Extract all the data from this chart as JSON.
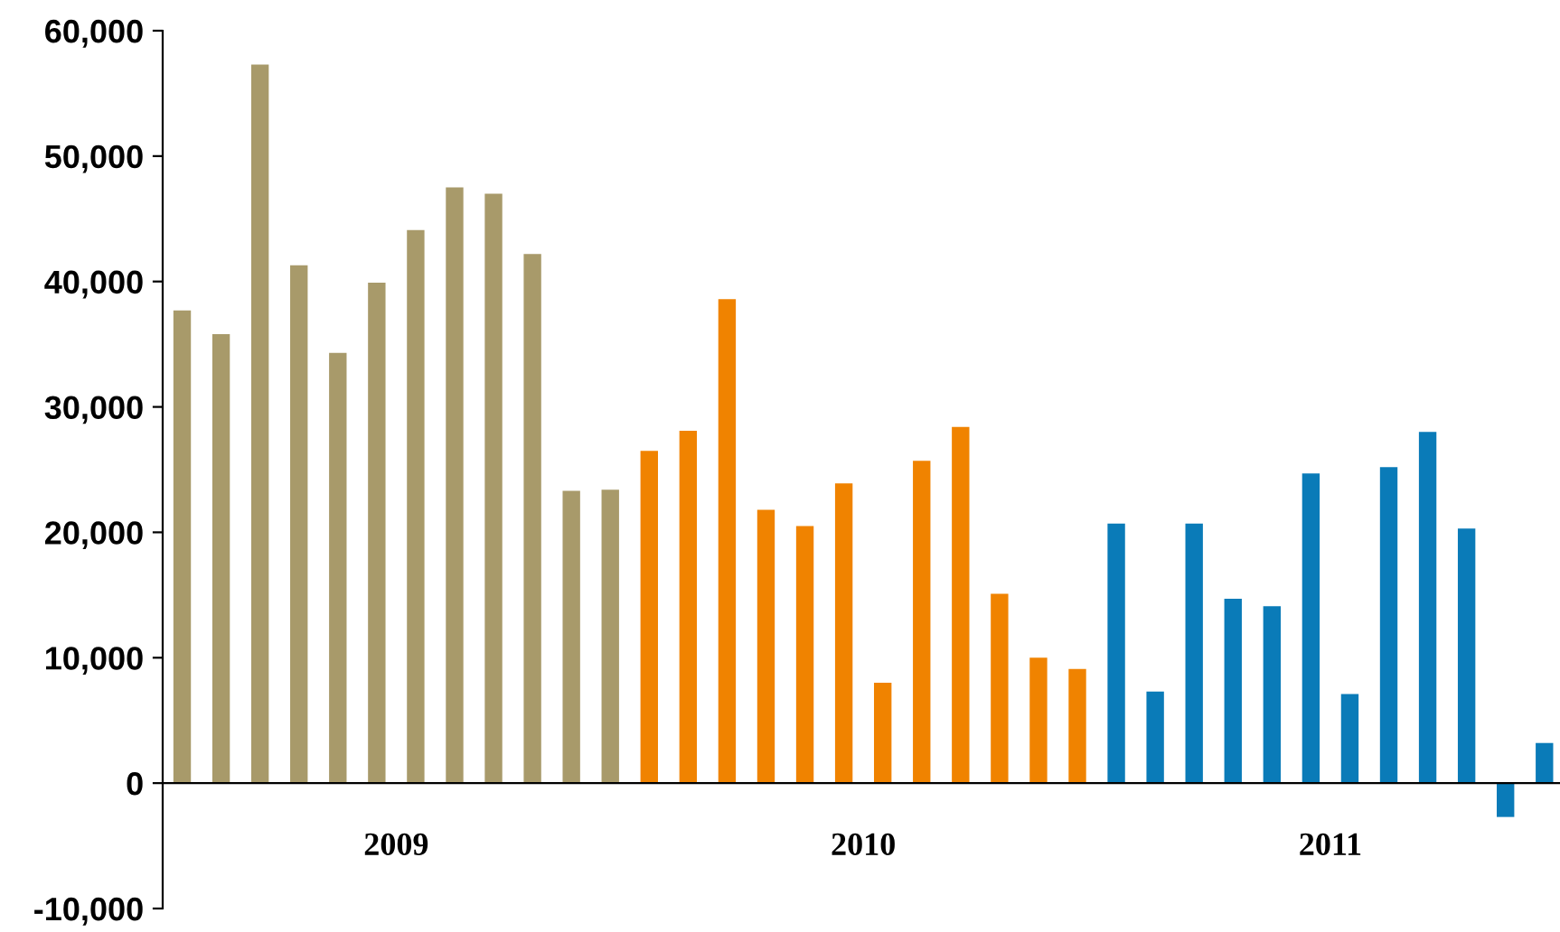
{
  "chart_data": {
    "type": "bar",
    "categories": [
      null,
      null,
      null,
      null,
      null,
      null,
      null,
      null,
      null,
      null,
      null,
      null,
      null,
      null,
      null,
      null,
      null,
      null,
      null,
      null,
      null,
      null,
      null,
      null,
      null,
      null,
      null,
      null,
      null,
      null,
      null,
      null,
      null,
      null,
      null,
      null
    ],
    "values": [
      37700,
      35800,
      57300,
      41300,
      34300,
      39900,
      44100,
      47500,
      47000,
      42200,
      23300,
      23400,
      26500,
      28100,
      38600,
      21800,
      20500,
      23900,
      8000,
      25700,
      28400,
      15100,
      10000,
      9100,
      20700,
      7300,
      20700,
      14700,
      14100,
      24700,
      7100,
      25200,
      28000,
      20300,
      -2700,
      3200
    ],
    "colors": [
      "#a89a6a",
      "#a89a6a",
      "#a89a6a",
      "#a89a6a",
      "#a89a6a",
      "#a89a6a",
      "#a89a6a",
      "#a89a6a",
      "#a89a6a",
      "#a89a6a",
      "#a89a6a",
      "#a89a6a",
      "#f08300",
      "#f08300",
      "#f08300",
      "#f08300",
      "#f08300",
      "#f08300",
      "#f08300",
      "#f08300",
      "#f08300",
      "#f08300",
      "#f08300",
      "#f08300",
      "#0a7bb8",
      "#0a7bb8",
      "#0a7bb8",
      "#0a7bb8",
      "#0a7bb8",
      "#0a7bb8",
      "#0a7bb8",
      "#0a7bb8",
      "#0a7bb8",
      "#0a7bb8",
      "#0a7bb8",
      "#0a7bb8"
    ],
    "annotations": [
      "2009",
      "2010",
      "2011"
    ],
    "ylim": [
      -10000,
      60000
    ],
    "yticks": [
      {
        "value": -10000,
        "label": "-10,000"
      },
      {
        "value": 0,
        "label": "0"
      },
      {
        "value": 10000,
        "label": "10,000"
      },
      {
        "value": 20000,
        "label": "20,000"
      },
      {
        "value": 30000,
        "label": "30,000"
      },
      {
        "value": 40000,
        "label": "40,000"
      },
      {
        "value": 50000,
        "label": "50,000"
      },
      {
        "value": 60000,
        "label": "60,000"
      }
    ],
    "legend": false
  }
}
